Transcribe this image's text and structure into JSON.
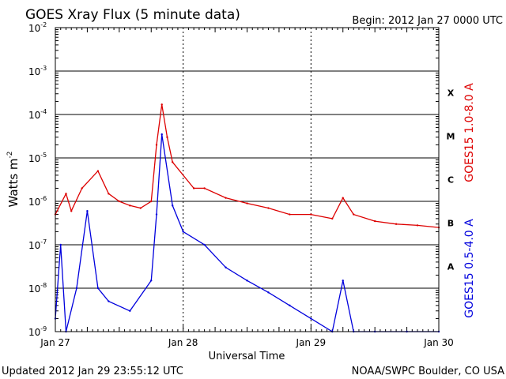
{
  "header": {
    "title": "GOES Xray Flux (5 minute data)",
    "begin": "Begin:  2012 Jan 27 0000 UTC"
  },
  "footer": {
    "updated": "Updated 2012 Jan 29 23:55:12 UTC",
    "credit": "NOAA/SWPC Boulder, CO USA"
  },
  "chart_data": {
    "type": "line",
    "title": "GOES Xray Flux (5 minute data)",
    "xlabel": "Universal Time",
    "ylabel_base": "Watts m",
    "ylabel_exp": "-2",
    "yscale": "log",
    "ylim": [
      1e-09,
      0.01
    ],
    "xlim_days": [
      0,
      3
    ],
    "x_tick_labels": [
      "Jan 27",
      "Jan 28",
      "Jan 29",
      "Jan 30"
    ],
    "y_tick_labels": [
      {
        "base": "10",
        "exp": "-9"
      },
      {
        "base": "10",
        "exp": "-8"
      },
      {
        "base": "10",
        "exp": "-7"
      },
      {
        "base": "10",
        "exp": "-6"
      },
      {
        "base": "10",
        "exp": "-5"
      },
      {
        "base": "10",
        "exp": "-4"
      },
      {
        "base": "10",
        "exp": "-3"
      },
      {
        "base": "10",
        "exp": "-2"
      }
    ],
    "flare_classes": [
      "A",
      "B",
      "C",
      "M",
      "X"
    ],
    "grid": "horizontal lines at each decade",
    "series": [
      {
        "name": "GOES15 1.0-8.0 A",
        "color": "#dd0000",
        "x": [
          "Jan 27 00:00",
          "Jan 27 02:00",
          "Jan 27 03:00",
          "Jan 27 05:00",
          "Jan 27 08:00",
          "Jan 27 10:00",
          "Jan 27 12:00",
          "Jan 27 14:00",
          "Jan 27 16:00",
          "Jan 27 18:00",
          "Jan 27 19:00",
          "Jan 27 20:00",
          "Jan 27 21:00",
          "Jan 27 22:00",
          "Jan 28 02:00",
          "Jan 28 04:00",
          "Jan 28 08:00",
          "Jan 28 12:00",
          "Jan 28 16:00",
          "Jan 28 20:00",
          "Jan 29 00:00",
          "Jan 29 04:00",
          "Jan 29 06:00",
          "Jan 29 08:00",
          "Jan 29 12:00",
          "Jan 29 16:00",
          "Jan 29 20:00",
          "Jan 30 00:00"
        ],
        "y": [
          5e-07,
          1.5e-06,
          6e-07,
          2e-06,
          5e-06,
          1.5e-06,
          1e-06,
          8e-07,
          7e-07,
          1e-06,
          2e-05,
          0.00017,
          3e-05,
          8e-06,
          2e-06,
          2e-06,
          1.2e-06,
          9e-07,
          7e-07,
          5e-07,
          5e-07,
          4e-07,
          1.2e-06,
          5e-07,
          3.5e-07,
          3e-07,
          2.8e-07,
          2.5e-07
        ]
      },
      {
        "name": "GOES15 0.5-4.0 A",
        "color": "#0000dd",
        "x": [
          "Jan 27 00:00",
          "Jan 27 01:00",
          "Jan 27 02:00",
          "Jan 27 04:00",
          "Jan 27 06:00",
          "Jan 27 08:00",
          "Jan 27 10:00",
          "Jan 27 14:00",
          "Jan 27 18:00",
          "Jan 27 19:00",
          "Jan 27 20:00",
          "Jan 27 22:00",
          "Jan 28 00:00",
          "Jan 28 04:00",
          "Jan 28 08:00",
          "Jan 28 12:00",
          "Jan 28 16:00",
          "Jan 28 20:00",
          "Jan 29 00:00",
          "Jan 29 04:00",
          "Jan 29 06:00",
          "Jan 29 08:00",
          "Jan 29 12:00",
          "Jan 29 18:00",
          "Jan 30 00:00"
        ],
        "y": [
          2e-09,
          1e-07,
          1e-09,
          1e-08,
          6e-07,
          1e-08,
          5e-09,
          3e-09,
          1.5e-08,
          5e-07,
          3.5e-05,
          8e-07,
          2e-07,
          1e-07,
          3e-08,
          1.5e-08,
          8e-09,
          4e-09,
          2e-09,
          1e-09,
          1.5e-08,
          1e-09,
          1e-09,
          1e-09,
          1e-09
        ]
      }
    ]
  }
}
